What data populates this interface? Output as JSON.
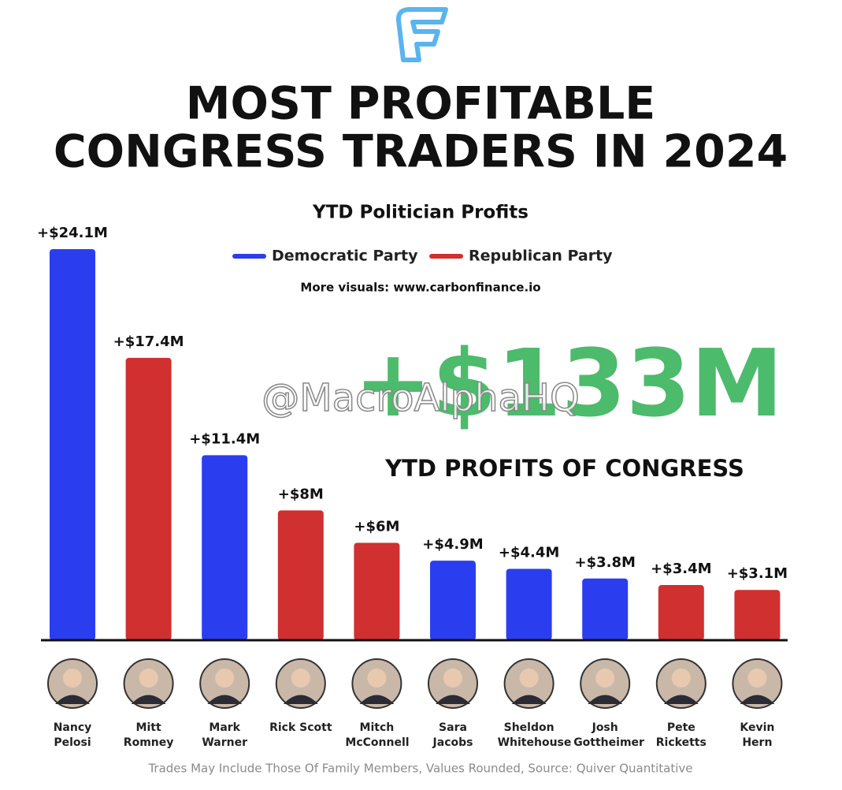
{
  "chart_data": {
    "type": "bar",
    "title_lines": [
      "MOST PROFITABLE",
      "CONGRESS TRADERS IN 2024"
    ],
    "subtitle": "YTD Politician Profits",
    "note": "More visuals: www.carbonfinance.io",
    "annotations": [
      "+$133M",
      "YTD PROFITS OF CONGRESS"
    ],
    "watermark": "@MacroAlphaHQ",
    "footnote": "Trades May Include Those Of Family Members, Values Rounded, Source: Quiver Quantitative",
    "categories": [
      "Nancy Pelosi",
      "Mitt Romney",
      "Mark Warner",
      "Rick Scott",
      "Mitch McConnell",
      "Sara Jacobs",
      "Sheldon Whitehouse",
      "Josh Gottheimer",
      "Pete Ricketts",
      "Kevin Hern"
    ],
    "series": [
      {
        "name": "Democratic Party",
        "color": "#2a3ef0",
        "values": [
          24.1,
          null,
          11.4,
          null,
          null,
          4.9,
          4.4,
          3.8,
          null,
          null
        ],
        "value_labels": [
          "+$24.1M",
          null,
          "+$11.4M",
          null,
          null,
          "+$4.9M",
          "+$4.4M",
          "+$3.8M",
          null,
          null
        ]
      },
      {
        "name": "Republican Party",
        "color": "#d0302f",
        "values": [
          null,
          17.4,
          null,
          8,
          6,
          null,
          null,
          null,
          3.4,
          3.1
        ],
        "value_labels": [
          null,
          "+$17.4M",
          null,
          "+$8M",
          "+$6M",
          null,
          null,
          null,
          "+$3.4M",
          "+$3.1M"
        ]
      }
    ]
  }
}
